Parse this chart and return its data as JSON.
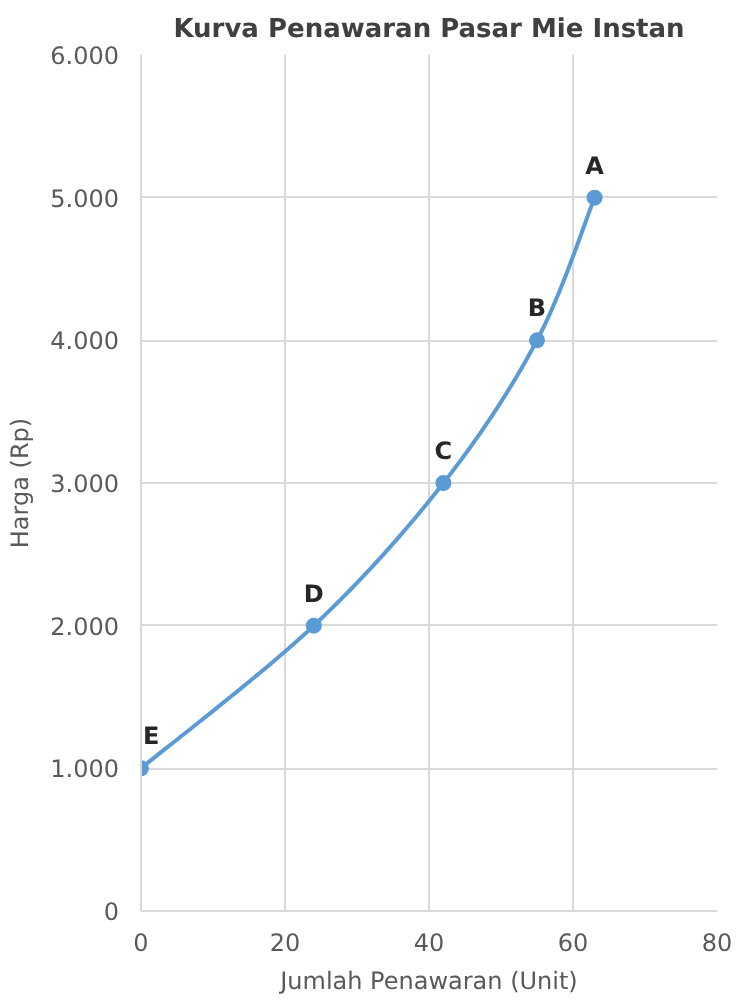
{
  "chart_data": {
    "type": "line",
    "title": "Kurva Penawaran Pasar Mie Instan",
    "xlabel": "Jumlah Penawaran (Unit)",
    "ylabel": "Harga (Rp)",
    "x": [
      0,
      24,
      42,
      55,
      63
    ],
    "series": [
      {
        "color": "#5b9bd5",
        "values": [
          1000,
          2000,
          3000,
          4000,
          5000
        ]
      }
    ],
    "xlim": [
      0,
      80
    ],
    "xticks": [
      0,
      20,
      40,
      60,
      80
    ],
    "ylim": [
      0,
      6000
    ],
    "yticks": [
      0,
      {
        "value": 1000,
        "label": "1.000"
      },
      {
        "value": 2000,
        "label": "2.000"
      },
      {
        "value": 3000,
        "label": "3.000"
      },
      {
        "value": 4000,
        "label": "4.000"
      },
      {
        "value": 5000,
        "label": "5.000"
      },
      {
        "value": 6000,
        "label": "6.000"
      }
    ],
    "annotations": [
      {
        "text": "E",
        "x": 0,
        "y": 1000
      },
      {
        "text": "D",
        "x": 24,
        "y": 2000
      },
      {
        "text": "C",
        "x": 42,
        "y": 3000
      },
      {
        "text": "B",
        "x": 55,
        "y": 4000
      },
      {
        "text": "A",
        "x": 63,
        "y": 5000
      }
    ],
    "grid": true,
    "marker": "circle",
    "line_style": "solid"
  }
}
